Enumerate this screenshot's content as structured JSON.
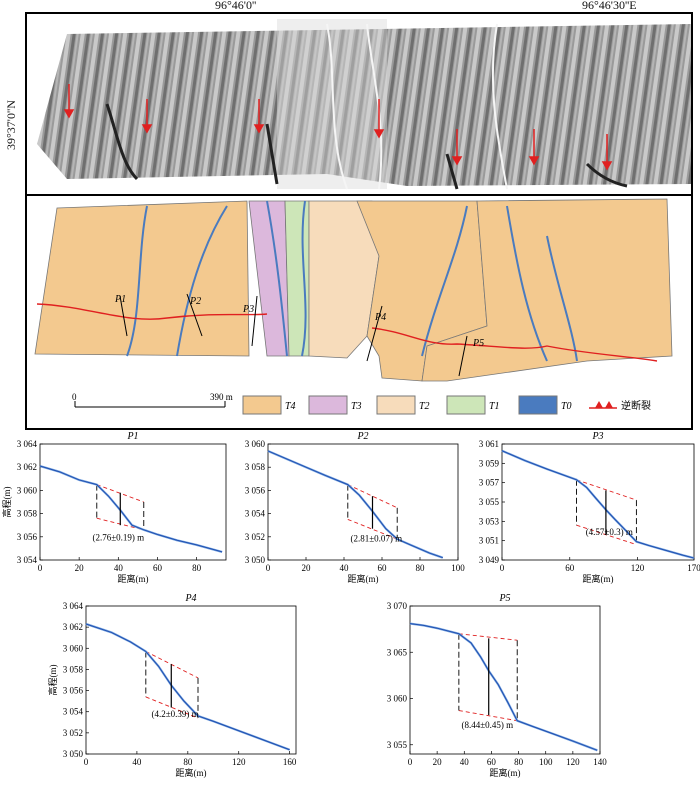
{
  "map": {
    "lon_label_1": "96°46'0''",
    "lon_label_2": "96°46'30''E",
    "lat_label": "39°37'0''N",
    "scale_start": "0",
    "scale_end": "390 m",
    "profile_labels": [
      "P1",
      "P2",
      "P3",
      "P4",
      "P5"
    ],
    "legend": [
      {
        "label": "T4",
        "color": "#f3c98f"
      },
      {
        "label": "T3",
        "color": "#dcb8dc"
      },
      {
        "label": "T2",
        "color": "#f7dcbb"
      },
      {
        "label": "T1",
        "color": "#cde6b8"
      },
      {
        "label": "T0",
        "color": "#4a7bbf"
      },
      {
        "label": "逆断裂",
        "color": "#e02020"
      }
    ]
  },
  "chart_data": [
    {
      "type": "line",
      "title": "P1",
      "xlabel": "距离(m)",
      "ylabel": "高程(m)",
      "xlim": [
        0,
        95
      ],
      "ylim": [
        3054,
        3064
      ],
      "xticks": [
        0,
        20,
        40,
        60,
        80
      ],
      "yticks": [
        3054,
        3056,
        3058,
        3060,
        3062,
        3064
      ],
      "ytick_labels": [
        "3 054",
        "3 056",
        "3 058",
        "3 060",
        "3 062",
        "3 064"
      ],
      "profile": {
        "x": [
          0,
          10,
          20,
          29,
          35,
          41,
          47,
          53,
          60,
          70,
          80,
          93
        ],
        "y": [
          3062.1,
          3061.6,
          3060.9,
          3060.5,
          3059.5,
          3058.3,
          3057.0,
          3056.6,
          3056.2,
          3055.7,
          3055.3,
          3054.7
        ]
      },
      "upper_line": [
        [
          29,
          3060.5
        ],
        [
          53,
          3059.0
        ]
      ],
      "lower_line": [
        [
          29,
          3057.6
        ],
        [
          53,
          3056.6
        ]
      ],
      "offset_line": [
        [
          41,
          3059.8
        ],
        [
          41,
          3057.0
        ]
      ],
      "annotation": "(2.76±0.19) m",
      "annotation_pos": [
        40,
        3055.7
      ]
    },
    {
      "type": "line",
      "title": "P2",
      "xlabel": "距离(m)",
      "ylabel": "",
      "xlim": [
        0,
        100
      ],
      "ylim": [
        3050,
        3060
      ],
      "xticks": [
        0,
        20,
        40,
        60,
        80,
        100
      ],
      "yticks": [
        3050,
        3052,
        3054,
        3056,
        3058,
        3060
      ],
      "ytick_labels": [
        "3 050",
        "3 052",
        "3 054",
        "3 056",
        "3 058",
        "3 060"
      ],
      "profile": {
        "x": [
          0,
          10,
          20,
          30,
          42,
          48,
          55,
          62,
          68,
          75,
          85,
          92
        ],
        "y": [
          3059.4,
          3058.7,
          3058.0,
          3057.3,
          3056.5,
          3055.6,
          3054.2,
          3052.7,
          3051.8,
          3051.3,
          3050.6,
          3050.2
        ]
      },
      "upper_line": [
        [
          42,
          3056.5
        ],
        [
          68,
          3054.5
        ]
      ],
      "lower_line": [
        [
          42,
          3053.5
        ],
        [
          68,
          3051.8
        ]
      ],
      "offset_line": [
        [
          55,
          3055.5
        ],
        [
          55,
          3052.7
        ]
      ],
      "annotation": "(2.81±0.07) m",
      "annotation_pos": [
        57,
        3051.6
      ]
    },
    {
      "type": "line",
      "title": "P3",
      "xlabel": "距离(m)",
      "ylabel": "",
      "xlim": [
        0,
        170
      ],
      "ylim": [
        3049,
        3061
      ],
      "xticks": [
        0,
        60,
        120,
        170
      ],
      "yticks": [
        3049,
        3051,
        3053,
        3055,
        3057,
        3059,
        3061
      ],
      "ytick_labels": [
        "3 049",
        "3 051",
        "3 053",
        "3 055",
        "3 057",
        "3 059",
        "3 061"
      ],
      "profile": {
        "x": [
          0,
          20,
          40,
          66,
          75,
          83,
          92,
          100,
          110,
          119,
          130,
          145,
          160,
          170
        ],
        "y": [
          3060.3,
          3059.3,
          3058.4,
          3057.3,
          3056.5,
          3055.4,
          3054.2,
          3053.2,
          3052.0,
          3050.9,
          3050.5,
          3050.0,
          3049.5,
          3049.2
        ]
      },
      "upper_line": [
        [
          66,
          3057.3
        ],
        [
          119,
          3055.2
        ]
      ],
      "lower_line": [
        [
          66,
          3052.6
        ],
        [
          119,
          3050.6
        ]
      ],
      "offset_line": [
        [
          92,
          3056.2
        ],
        [
          92,
          3051.6
        ]
      ],
      "annotation": "(4.57±0.3) m",
      "annotation_pos": [
        95,
        3051.6
      ]
    },
    {
      "type": "line",
      "title": "P4",
      "xlabel": "距离(m)",
      "ylabel": "高程(m)",
      "xlim": [
        0,
        165
      ],
      "ylim": [
        3050,
        3064
      ],
      "xticks": [
        0,
        40,
        80,
        120,
        160
      ],
      "yticks": [
        3050,
        3052,
        3054,
        3056,
        3058,
        3060,
        3062,
        3064
      ],
      "ytick_labels": [
        "3 050",
        "3 052",
        "3 054",
        "3 056",
        "3 058",
        "3 060",
        "3 062",
        "3 064"
      ],
      "profile": {
        "x": [
          0,
          20,
          35,
          47,
          57,
          67,
          77,
          88,
          100,
          120,
          140,
          160
        ],
        "y": [
          3062.3,
          3061.5,
          3060.6,
          3059.7,
          3058.3,
          3056.5,
          3055.0,
          3053.6,
          3053.1,
          3052.2,
          3051.3,
          3050.4
        ]
      },
      "upper_line": [
        [
          47,
          3059.7
        ],
        [
          88,
          3057.2
        ]
      ],
      "lower_line": [
        [
          47,
          3055.4
        ],
        [
          88,
          3053.4
        ]
      ],
      "offset_line": [
        [
          67,
          3058.5
        ],
        [
          67,
          3054.4
        ]
      ],
      "annotation": "(4.2±0.39) m",
      "annotation_pos": [
        70,
        3053.5
      ]
    },
    {
      "type": "line",
      "title": "P5",
      "xlabel": "距离(m)",
      "ylabel": "",
      "xlim": [
        0,
        140
      ],
      "ylim": [
        3054,
        3070
      ],
      "xticks": [
        0,
        20,
        40,
        60,
        80,
        100,
        120,
        140
      ],
      "yticks": [
        3055,
        3060,
        3065,
        3070
      ],
      "ytick_labels": [
        "3 055",
        "3 060",
        "3 065",
        "3 070"
      ],
      "profile": {
        "x": [
          0,
          10,
          20,
          36,
          45,
          52,
          58,
          65,
          72,
          79,
          90,
          105,
          120,
          138
        ],
        "y": [
          3068.1,
          3067.9,
          3067.6,
          3067.0,
          3066.0,
          3064.5,
          3063.0,
          3061.5,
          3059.6,
          3057.6,
          3057.0,
          3056.2,
          3055.4,
          3054.4
        ]
      },
      "upper_line": [
        [
          36,
          3067.0
        ],
        [
          79,
          3066.3
        ]
      ],
      "lower_line": [
        [
          36,
          3058.7
        ],
        [
          79,
          3057.6
        ]
      ],
      "offset_line": [
        [
          58,
          3066.5
        ],
        [
          58,
          3058.2
        ]
      ],
      "annotation": "(8.44±0.45) m",
      "annotation_pos": [
        57,
        3056.8
      ]
    }
  ]
}
